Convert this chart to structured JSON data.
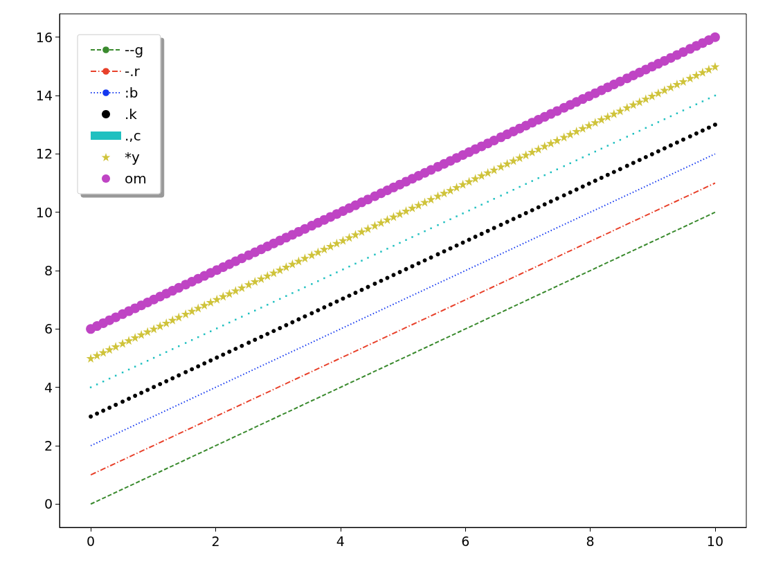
{
  "chart_data": {
    "type": "line",
    "x": [
      0,
      0.1,
      0.2,
      0.3,
      0.4,
      0.51,
      0.61,
      0.71,
      0.81,
      0.91,
      1.01,
      1.11,
      1.21,
      1.31,
      1.41,
      1.52,
      1.62,
      1.72,
      1.82,
      1.92,
      2.02,
      2.12,
      2.22,
      2.32,
      2.42,
      2.53,
      2.63,
      2.73,
      2.83,
      2.93,
      3.03,
      3.13,
      3.23,
      3.33,
      3.43,
      3.54,
      3.64,
      3.74,
      3.84,
      3.94,
      4.04,
      4.14,
      4.24,
      4.34,
      4.44,
      4.55,
      4.65,
      4.75,
      4.85,
      4.95,
      5.05,
      5.15,
      5.25,
      5.35,
      5.45,
      5.56,
      5.66,
      5.76,
      5.86,
      5.96,
      6.06,
      6.16,
      6.26,
      6.36,
      6.46,
      6.57,
      6.67,
      6.77,
      6.87,
      6.97,
      7.07,
      7.17,
      7.27,
      7.37,
      7.47,
      7.58,
      7.68,
      7.78,
      7.88,
      7.98,
      8.08,
      8.18,
      8.28,
      8.38,
      8.48,
      8.59,
      8.69,
      8.79,
      8.89,
      8.99,
      9.09,
      9.19,
      9.29,
      9.39,
      9.49,
      9.6,
      9.7,
      9.8,
      9.9,
      10
    ],
    "xlim": [
      -0.5,
      10.5
    ],
    "xticks": [
      0,
      2,
      4,
      6,
      8,
      10
    ],
    "ylim": [
      -0.8,
      16.8
    ],
    "yticks": [
      0,
      2,
      4,
      6,
      8,
      10,
      12,
      14,
      16
    ],
    "grid": false,
    "legend": "top left",
    "series": [
      {
        "name": "--g",
        "color": "#3a8a2e",
        "line_style": "dashed",
        "marker": "none",
        "values": [
          0,
          0.1,
          0.2,
          0.3,
          0.4,
          0.51,
          0.61,
          0.71,
          0.81,
          0.91,
          1.01,
          1.11,
          1.21,
          1.31,
          1.41,
          1.52,
          1.62,
          1.72,
          1.82,
          1.92,
          2.02,
          2.12,
          2.22,
          2.32,
          2.42,
          2.53,
          2.63,
          2.73,
          2.83,
          2.93,
          3.03,
          3.13,
          3.23,
          3.33,
          3.43,
          3.54,
          3.64,
          3.74,
          3.84,
          3.94,
          4.04,
          4.14,
          4.24,
          4.34,
          4.44,
          4.55,
          4.65,
          4.75,
          4.85,
          4.95,
          5.05,
          5.15,
          5.25,
          5.35,
          5.45,
          5.56,
          5.66,
          5.76,
          5.86,
          5.96,
          6.06,
          6.16,
          6.26,
          6.36,
          6.46,
          6.57,
          6.67,
          6.77,
          6.87,
          6.97,
          7.07,
          7.17,
          7.27,
          7.37,
          7.47,
          7.58,
          7.68,
          7.78,
          7.88,
          7.98,
          8.08,
          8.18,
          8.28,
          8.38,
          8.48,
          8.59,
          8.69,
          8.79,
          8.89,
          8.99,
          9.09,
          9.19,
          9.29,
          9.39,
          9.49,
          9.6,
          9.7,
          9.8,
          9.9,
          10
        ]
      },
      {
        "name": "-.r",
        "color": "#e8402a",
        "line_style": "dashdot",
        "marker": "none",
        "values": [
          1,
          1.1,
          1.2,
          1.3,
          1.4,
          1.51,
          1.61,
          1.71,
          1.81,
          1.91,
          2.01,
          2.11,
          2.21,
          2.31,
          2.41,
          2.52,
          2.62,
          2.72,
          2.82,
          2.92,
          3.02,
          3.12,
          3.22,
          3.32,
          3.42,
          3.53,
          3.63,
          3.73,
          3.83,
          3.93,
          4.03,
          4.13,
          4.23,
          4.33,
          4.43,
          4.54,
          4.64,
          4.74,
          4.84,
          4.94,
          5.04,
          5.14,
          5.24,
          5.34,
          5.44,
          5.55,
          5.65,
          5.75,
          5.85,
          5.95,
          6.05,
          6.15,
          6.25,
          6.35,
          6.45,
          6.56,
          6.66,
          6.76,
          6.86,
          6.96,
          7.06,
          7.16,
          7.26,
          7.36,
          7.46,
          7.57,
          7.67,
          7.77,
          7.87,
          7.97,
          8.07,
          8.17,
          8.27,
          8.37,
          8.47,
          8.58,
          8.68,
          8.78,
          8.88,
          8.98,
          9.08,
          9.18,
          9.28,
          9.38,
          9.48,
          9.59,
          9.69,
          9.79,
          9.89,
          9.99,
          10.09,
          10.19,
          10.29,
          10.39,
          10.49,
          10.6,
          10.7,
          10.8,
          10.9,
          11
        ]
      },
      {
        "name": ":b",
        "color": "#1438f0",
        "line_style": "dotted",
        "marker": "none",
        "values": [
          2,
          2.1,
          2.2,
          2.3,
          2.4,
          2.51,
          2.61,
          2.71,
          2.81,
          2.91,
          3.01,
          3.11,
          3.21,
          3.31,
          3.41,
          3.52,
          3.62,
          3.72,
          3.82,
          3.92,
          4.02,
          4.12,
          4.22,
          4.32,
          4.42,
          4.53,
          4.63,
          4.73,
          4.83,
          4.93,
          5.03,
          5.13,
          5.23,
          5.33,
          5.43,
          5.54,
          5.64,
          5.74,
          5.84,
          5.94,
          6.04,
          6.14,
          6.24,
          6.34,
          6.44,
          6.55,
          6.65,
          6.75,
          6.85,
          6.95,
          7.05,
          7.15,
          7.25,
          7.35,
          7.45,
          7.56,
          7.66,
          7.76,
          7.86,
          7.96,
          8.06,
          8.16,
          8.26,
          8.36,
          8.46,
          8.57,
          8.67,
          8.77,
          8.87,
          8.97,
          9.07,
          9.17,
          9.27,
          9.37,
          9.47,
          9.58,
          9.68,
          9.78,
          9.88,
          9.98,
          10.08,
          10.18,
          10.28,
          10.38,
          10.48,
          10.59,
          10.69,
          10.79,
          10.89,
          10.99,
          11.09,
          11.19,
          11.29,
          11.39,
          11.49,
          11.6,
          11.7,
          11.8,
          11.9,
          12
        ]
      },
      {
        "name": ".k",
        "type": "scatter",
        "color": "#000000",
        "marker": "point",
        "values": [
          3,
          3.1,
          3.2,
          3.3,
          3.4,
          3.51,
          3.61,
          3.71,
          3.81,
          3.91,
          4.01,
          4.11,
          4.21,
          4.31,
          4.41,
          4.52,
          4.62,
          4.72,
          4.82,
          4.92,
          5.02,
          5.12,
          5.22,
          5.32,
          5.42,
          5.53,
          5.63,
          5.73,
          5.83,
          5.93,
          6.03,
          6.13,
          6.23,
          6.33,
          6.43,
          6.54,
          6.64,
          6.74,
          6.84,
          6.94,
          7.04,
          7.14,
          7.24,
          7.34,
          7.44,
          7.55,
          7.65,
          7.75,
          7.85,
          7.95,
          8.05,
          8.15,
          8.25,
          8.35,
          8.45,
          8.56,
          8.66,
          8.76,
          8.86,
          8.96,
          9.06,
          9.16,
          9.26,
          9.36,
          9.46,
          9.57,
          9.67,
          9.77,
          9.87,
          9.97,
          10.07,
          10.17,
          10.27,
          10.37,
          10.47,
          10.58,
          10.68,
          10.78,
          10.88,
          10.98,
          11.08,
          11.18,
          11.28,
          11.38,
          11.48,
          11.59,
          11.69,
          11.79,
          11.89,
          11.99,
          12.09,
          12.19,
          12.29,
          12.39,
          12.49,
          12.6,
          12.7,
          12.8,
          12.9,
          13
        ]
      },
      {
        "name": ".,c",
        "type": "scatter",
        "color": "#20c0c0",
        "marker": "square",
        "values": [
          4,
          4.1,
          4.2,
          4.3,
          4.4,
          4.51,
          4.61,
          4.71,
          4.81,
          4.91,
          5.01,
          5.11,
          5.21,
          5.31,
          5.41,
          5.52,
          5.62,
          5.72,
          5.82,
          5.92,
          6.02,
          6.12,
          6.22,
          6.32,
          6.42,
          6.53,
          6.63,
          6.73,
          6.83,
          6.93,
          7.03,
          7.13,
          7.23,
          7.33,
          7.43,
          7.54,
          7.64,
          7.74,
          7.84,
          7.94,
          8.04,
          8.14,
          8.24,
          8.34,
          8.44,
          8.55,
          8.65,
          8.75,
          8.85,
          8.95,
          9.05,
          9.15,
          9.25,
          9.35,
          9.45,
          9.56,
          9.66,
          9.76,
          9.86,
          9.96,
          10.06,
          10.16,
          10.26,
          10.36,
          10.46,
          10.57,
          10.67,
          10.77,
          10.87,
          10.97,
          11.07,
          11.17,
          11.27,
          11.37,
          11.47,
          11.58,
          11.68,
          11.78,
          11.88,
          11.98,
          12.08,
          12.18,
          12.28,
          12.38,
          12.48,
          12.59,
          12.69,
          12.79,
          12.89,
          12.99,
          13.09,
          13.19,
          13.29,
          13.39,
          13.49,
          13.6,
          13.7,
          13.8,
          13.9,
          14
        ]
      },
      {
        "name": "*y",
        "type": "scatter",
        "color": "#cfc33a",
        "marker": "star",
        "values": [
          5,
          5.1,
          5.2,
          5.3,
          5.4,
          5.51,
          5.61,
          5.71,
          5.81,
          5.91,
          6.01,
          6.11,
          6.21,
          6.31,
          6.41,
          6.52,
          6.62,
          6.72,
          6.82,
          6.92,
          7.02,
          7.12,
          7.22,
          7.32,
          7.42,
          7.53,
          7.63,
          7.73,
          7.83,
          7.93,
          8.03,
          8.13,
          8.23,
          8.33,
          8.43,
          8.54,
          8.64,
          8.74,
          8.84,
          8.94,
          9.04,
          9.14,
          9.24,
          9.34,
          9.44,
          9.55,
          9.65,
          9.75,
          9.85,
          9.95,
          10.05,
          10.15,
          10.25,
          10.35,
          10.45,
          10.56,
          10.66,
          10.76,
          10.86,
          10.96,
          11.06,
          11.16,
          11.26,
          11.36,
          11.46,
          11.57,
          11.67,
          11.77,
          11.87,
          11.97,
          12.07,
          12.17,
          12.27,
          12.37,
          12.47,
          12.58,
          12.68,
          12.78,
          12.88,
          12.98,
          13.08,
          13.18,
          13.28,
          13.38,
          13.48,
          13.59,
          13.69,
          13.79,
          13.89,
          13.99,
          14.09,
          14.19,
          14.29,
          14.39,
          14.49,
          14.6,
          14.7,
          14.8,
          14.9,
          15
        ]
      },
      {
        "name": "om",
        "type": "scatter",
        "color": "#bf44c4",
        "marker": "circle",
        "values": [
          6,
          6.1,
          6.2,
          6.3,
          6.4,
          6.51,
          6.61,
          6.71,
          6.81,
          6.91,
          7.01,
          7.11,
          7.21,
          7.31,
          7.41,
          7.52,
          7.62,
          7.72,
          7.82,
          7.92,
          8.02,
          8.12,
          8.22,
          8.32,
          8.42,
          8.53,
          8.63,
          8.73,
          8.83,
          8.93,
          9.03,
          9.13,
          9.23,
          9.33,
          9.43,
          9.54,
          9.64,
          9.74,
          9.84,
          9.94,
          10.04,
          10.14,
          10.24,
          10.34,
          10.44,
          10.55,
          10.65,
          10.75,
          10.85,
          10.95,
          11.05,
          11.15,
          11.25,
          11.35,
          11.45,
          11.56,
          11.66,
          11.76,
          11.86,
          11.96,
          12.06,
          12.16,
          12.26,
          12.36,
          12.46,
          12.57,
          12.67,
          12.77,
          12.87,
          12.97,
          13.07,
          13.17,
          13.27,
          13.37,
          13.47,
          13.58,
          13.68,
          13.78,
          13.88,
          13.98,
          14.08,
          14.18,
          14.28,
          14.38,
          14.48,
          14.59,
          14.69,
          14.79,
          14.89,
          14.99,
          15.09,
          15.19,
          15.29,
          15.39,
          15.49,
          15.6,
          15.7,
          15.8,
          15.9,
          16
        ]
      }
    ]
  }
}
